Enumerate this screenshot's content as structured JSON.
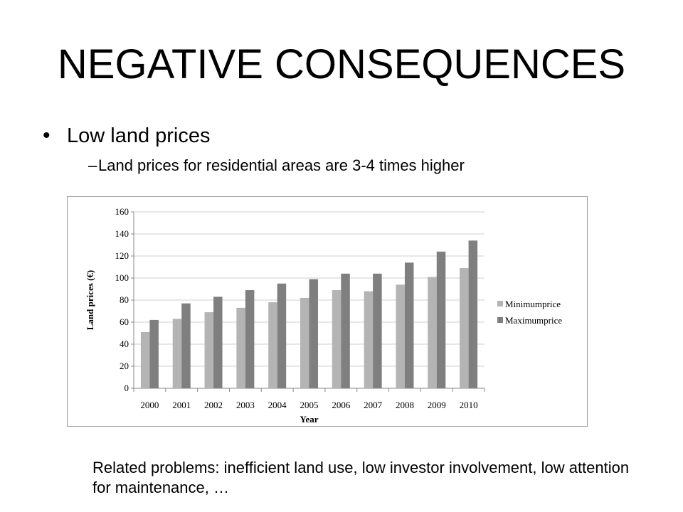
{
  "slide": {
    "title": "NEGATIVE CONSEQUENCES",
    "bullet": "Low land prices",
    "sub_bullet": "Land prices for residential areas are 3-4 times higher",
    "bullet_marker": "•",
    "sub_bullet_marker": "–",
    "related": "Related problems: inefficient land use, low investor involvement, low attention for maintenance, …"
  },
  "chart_data": {
    "type": "bar",
    "title": "",
    "xlabel": "Year",
    "ylabel": "Land prices (€)",
    "ylim": [
      0,
      160
    ],
    "yticks": [
      0,
      20,
      40,
      60,
      80,
      100,
      120,
      140,
      160
    ],
    "grid": true,
    "legend_position": "right",
    "categories": [
      "2000",
      "2001",
      "2002",
      "2003",
      "2004",
      "2005",
      "2006",
      "2007",
      "2008",
      "2009",
      "2010"
    ],
    "series": [
      {
        "name": "Minimumprice",
        "color": "#b4b4b4",
        "values": [
          51,
          63,
          69,
          73,
          78,
          82,
          89,
          88,
          94,
          101,
          109
        ]
      },
      {
        "name": "Maximumprice",
        "color": "#7f7f7f",
        "values": [
          62,
          77,
          83,
          89,
          95,
          99,
          104,
          104,
          114,
          124,
          134
        ]
      }
    ]
  }
}
